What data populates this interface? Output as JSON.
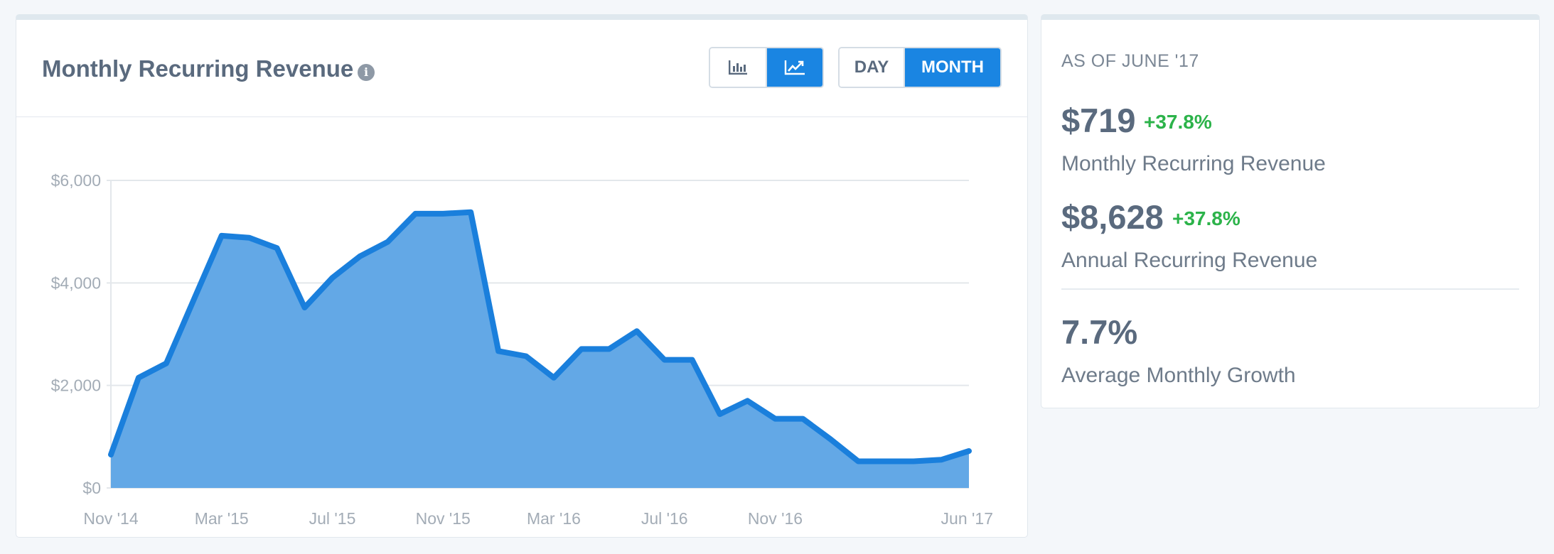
{
  "chart_panel": {
    "title": "Monthly Recurring Revenue",
    "info_icon": "info-icon",
    "chart_type_buttons": [
      {
        "icon": "bar-chart-icon",
        "active": false
      },
      {
        "icon": "line-chart-icon",
        "active": true
      }
    ],
    "period_buttons": [
      {
        "label": "DAY",
        "active": false
      },
      {
        "label": "MONTH",
        "active": true
      }
    ]
  },
  "chart_data": {
    "type": "area",
    "title": "Monthly Recurring Revenue",
    "x": [
      "Nov '14",
      "Dec '14",
      "Jan '15",
      "Feb '15",
      "Mar '15",
      "Apr '15",
      "May '15",
      "Jun '15",
      "Jul '15",
      "Aug '15",
      "Sep '15",
      "Oct '15",
      "Nov '15",
      "Dec '15",
      "Jan '16",
      "Feb '16",
      "Mar '16",
      "Apr '16",
      "May '16",
      "Jun '16",
      "Jul '16",
      "Aug '16",
      "Sep '16",
      "Oct '16",
      "Nov '16",
      "Dec '16",
      "Jan '17",
      "Feb '17",
      "Mar '17",
      "Apr '17",
      "May '17",
      "Jun '17"
    ],
    "x_tick_labels": [
      "Nov '14",
      "Mar '15",
      "Jul '15",
      "Nov '15",
      "Mar '16",
      "Jul '16",
      "Nov '16",
      "Jun '17"
    ],
    "series": [
      {
        "values": [
          650,
          2150,
          2430,
          3680,
          4920,
          4880,
          4680,
          3520,
          4100,
          4520,
          4800,
          5350,
          5350,
          5380,
          2670,
          2570,
          2150,
          2710,
          2710,
          3060,
          2500,
          2500,
          1440,
          1700,
          1350,
          1350,
          950,
          520,
          520,
          520,
          550,
          720
        ]
      }
    ],
    "y_ticks": [
      0,
      2000,
      4000,
      6000
    ],
    "y_tick_labels": [
      "$0",
      "$2,000",
      "$4,000",
      "$6,000"
    ],
    "ylim": [
      0,
      6000
    ],
    "grid": true,
    "legend": "none",
    "line_color": "#1a7fdc",
    "fill_color": "#63a8e6"
  },
  "stats_panel": {
    "as_of": "AS OF JUNE '17",
    "mrr_value": "$719",
    "mrr_change": "+37.8%",
    "mrr_label": "Monthly Recurring Revenue",
    "arr_value": "$8,628",
    "arr_change": "+37.8%",
    "arr_label": "Annual Recurring Revenue",
    "growth_value": "7.7%",
    "growth_label": "Average Monthly Growth"
  }
}
